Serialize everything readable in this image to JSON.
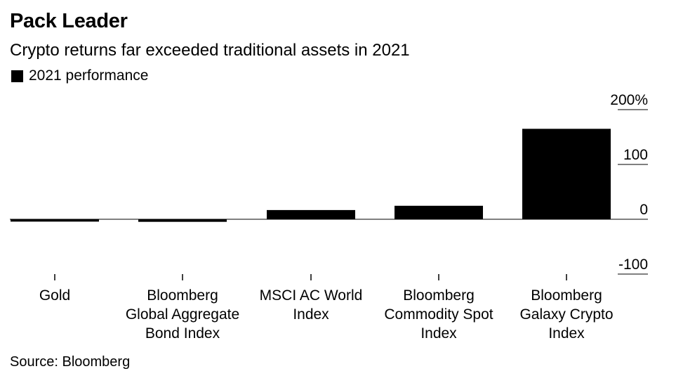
{
  "chart_data": {
    "type": "bar",
    "title": "Pack Leader",
    "subtitle": "Crypto returns far exceeded traditional assets in 2021",
    "legend": [
      {
        "name": "2021 performance",
        "color": "#000000"
      }
    ],
    "source": "Source: Bloomberg",
    "categories": [
      [
        "Gold"
      ],
      [
        "Bloomberg",
        "Global Aggregate",
        "Bond Index"
      ],
      [
        "MSCI AC World",
        "Index"
      ],
      [
        "Bloomberg",
        "Commodity Spot",
        "Index"
      ],
      [
        "Bloomberg",
        "Galaxy Crypto",
        "Index"
      ]
    ],
    "series": [
      {
        "name": "2021 performance",
        "values": [
          -4.3,
          -4.7,
          16.8,
          24.6,
          165
        ],
        "color": "#000000"
      }
    ],
    "yticks": [
      {
        "value": 200,
        "label": "200%"
      },
      {
        "value": 100,
        "label": "100"
      },
      {
        "value": 0,
        "label": "0"
      },
      {
        "value": -100,
        "label": "-100"
      }
    ],
    "ylim": [
      -100,
      200
    ],
    "y_axis_side": "right",
    "grid": false
  }
}
